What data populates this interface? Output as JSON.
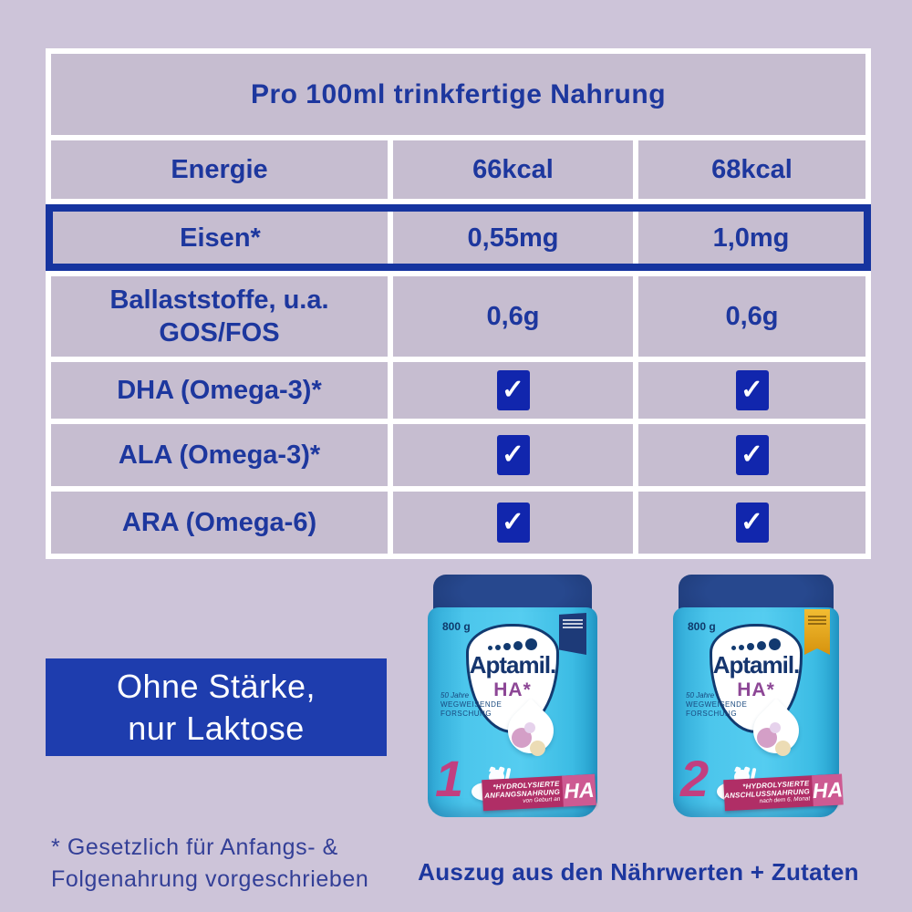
{
  "table": {
    "title": "Pro 100ml trinkfertige Nahrung",
    "rows": [
      {
        "label": "Energie",
        "v1": "66kcal",
        "v2": "68kcal"
      },
      {
        "label": "Eisen*",
        "v1": "0,55mg",
        "v2": "1,0mg"
      },
      {
        "label_line1": "Ballaststoffe, u.a.",
        "label_line2": "GOS/FOS",
        "v1": "0,6g",
        "v2": "0,6g"
      },
      {
        "label": "DHA (Omega-3)*",
        "v1": "✓",
        "v2": "✓"
      },
      {
        "label": "ALA (Omega-3)*",
        "v1": "✓",
        "v2": "✓"
      },
      {
        "label": "ARA (Omega-6)",
        "v1": "✓",
        "v2": "✓"
      }
    ]
  },
  "claim_badge": {
    "line1": "Ohne Stärke,",
    "line2": "nur Laktose"
  },
  "footnote": {
    "line1": "* Gesetzlich für Anfangs- &",
    "line2": "Folgenahrung vorgeschrieben"
  },
  "caption": "Auszug aus den Nährwerten + Zutaten",
  "products": [
    {
      "weight": "800 g",
      "brand": "Aptamil.",
      "variant": "HA*",
      "heritage_line1": "50 Jahre",
      "heritage_line2": "WEGWEISENDE",
      "heritage_line3": "FORSCHUNG",
      "stage_number": "1",
      "banner_line1": "*HYDROLYSIERTE",
      "banner_line2": "ANFANGSNAHRUNG",
      "banner_line3": "von Geburt an",
      "banner_ha": "HA"
    },
    {
      "weight": "800 g",
      "brand": "Aptamil.",
      "variant": "HA*",
      "heritage_line1": "50 Jahre",
      "heritage_line2": "WEGWEISENDE",
      "heritage_line3": "FORSCHUNG",
      "stage_number": "2",
      "banner_line1": "*HYDROLYSIERTE",
      "banner_line2": "ANSCHLUSSNAHRUNG",
      "banner_line3": "nach dem 6. Monat",
      "banner_ha": "HA"
    }
  ],
  "colors": {
    "background": "#cdc4d9",
    "table_cell": "#c6bdd0",
    "navy_text": "#1d379e",
    "highlight_border": "#16349f",
    "checkbox_blue": "#1126ad",
    "badge_blue": "#1e3dae",
    "can_body_cyan": "#4cc6ec",
    "can_lid_navy": "#1d3a78",
    "banner_magenta": "#b02e66",
    "variant_purple": "#8d4796",
    "award_gold": "#e2a31f"
  }
}
